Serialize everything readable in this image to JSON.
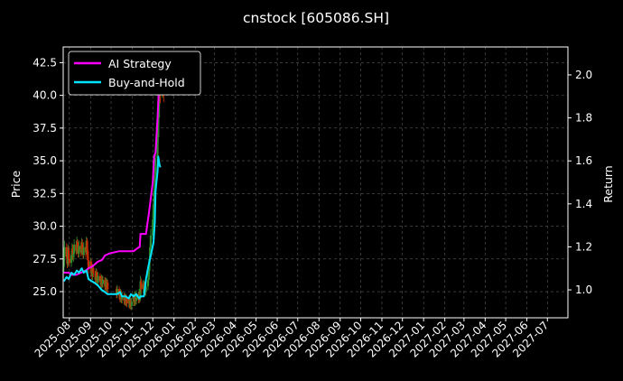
{
  "chart_data": {
    "type": "line",
    "title": "cnstock [605086.SH]",
    "ylabel_left": "Price",
    "ylabel_right": "Return",
    "ylim_left": [
      23.0,
      43.7
    ],
    "ylim_right": [
      0.87,
      2.13
    ],
    "grid": true,
    "legend_position": "top-left",
    "y_ticks_left": [
      "25.0",
      "27.5",
      "30.0",
      "32.5",
      "35.0",
      "37.5",
      "40.0",
      "42.5"
    ],
    "y_ticks_right": [
      "1.0",
      "1.2",
      "1.4",
      "1.6",
      "1.8",
      "2.0"
    ],
    "x_ticks": [
      "2025-08",
      "2025-09",
      "2025-10",
      "2025-11",
      "2025-12",
      "2026-01",
      "2026-02",
      "2026-03",
      "2026-04",
      "2026-05",
      "2026-06",
      "2026-07",
      "2026-08",
      "2026-09",
      "2026-10",
      "2026-11",
      "2026-12",
      "2027-01",
      "2027-02",
      "2027-03",
      "2027-04",
      "2027-05",
      "2027-06",
      "2027-07"
    ],
    "x_range": [
      "2025-07-23",
      "2027-07-31"
    ],
    "colors": {
      "up": "#2e8b2e",
      "down": "#cc2a00",
      "ai": "#ff00ff",
      "bh": "#00e5ff",
      "grid": "#5a5a5a"
    },
    "candles": [
      {
        "date": "2025-07-24",
        "o": 26.9,
        "c": 27.7,
        "h": 28.3,
        "l": 26.5
      },
      {
        "date": "2025-07-25",
        "o": 27.7,
        "c": 28.4,
        "h": 28.9,
        "l": 27.3
      },
      {
        "date": "2025-07-28",
        "o": 28.4,
        "c": 27.6,
        "h": 28.7,
        "l": 27.2
      },
      {
        "date": "2025-07-29",
        "o": 27.6,
        "c": 27.1,
        "h": 28.0,
        "l": 26.8
      },
      {
        "date": "2025-07-30",
        "o": 27.1,
        "c": 28.2,
        "h": 28.6,
        "l": 26.9
      },
      {
        "date": "2025-07-31",
        "o": 28.2,
        "c": 27.5,
        "h": 28.5,
        "l": 27.1
      },
      {
        "date": "2025-08-01",
        "o": 27.5,
        "c": 27.2,
        "h": 27.9,
        "l": 26.9
      },
      {
        "date": "2025-08-04",
        "o": 27.2,
        "c": 27.8,
        "h": 28.1,
        "l": 26.9
      },
      {
        "date": "2025-08-05",
        "o": 27.8,
        "c": 28.3,
        "h": 28.7,
        "l": 27.5
      },
      {
        "date": "2025-08-06",
        "o": 28.3,
        "c": 27.7,
        "h": 28.6,
        "l": 27.4
      },
      {
        "date": "2025-08-07",
        "o": 27.7,
        "c": 27.9,
        "h": 28.3,
        "l": 27.3
      },
      {
        "date": "2025-08-08",
        "o": 27.9,
        "c": 28.6,
        "h": 29.0,
        "l": 27.6
      },
      {
        "date": "2025-08-11",
        "o": 28.6,
        "c": 28.1,
        "h": 28.9,
        "l": 27.8
      },
      {
        "date": "2025-08-12",
        "o": 28.1,
        "c": 28.8,
        "h": 29.2,
        "l": 27.9
      },
      {
        "date": "2025-08-13",
        "o": 28.8,
        "c": 28.2,
        "h": 29.0,
        "l": 27.9
      },
      {
        "date": "2025-08-14",
        "o": 28.2,
        "c": 27.9,
        "h": 28.5,
        "l": 27.6
      },
      {
        "date": "2025-08-15",
        "o": 27.9,
        "c": 28.5,
        "h": 28.9,
        "l": 27.6
      },
      {
        "date": "2025-08-18",
        "o": 28.5,
        "c": 28.0,
        "h": 28.8,
        "l": 27.7
      },
      {
        "date": "2025-08-19",
        "o": 28.0,
        "c": 28.7,
        "h": 29.1,
        "l": 27.8
      },
      {
        "date": "2025-08-20",
        "o": 28.7,
        "c": 28.2,
        "h": 29.0,
        "l": 27.9
      },
      {
        "date": "2025-08-21",
        "o": 28.2,
        "c": 27.8,
        "h": 28.5,
        "l": 27.5
      },
      {
        "date": "2025-08-22",
        "o": 27.8,
        "c": 28.4,
        "h": 28.8,
        "l": 27.5
      },
      {
        "date": "2025-08-25",
        "o": 28.4,
        "c": 28.0,
        "h": 28.7,
        "l": 27.6
      },
      {
        "date": "2025-08-26",
        "o": 28.0,
        "c": 28.9,
        "h": 29.2,
        "l": 27.8
      },
      {
        "date": "2025-08-27",
        "o": 28.9,
        "c": 28.1,
        "h": 29.1,
        "l": 27.8
      },
      {
        "date": "2025-08-28",
        "o": 28.1,
        "c": 27.4,
        "h": 28.3,
        "l": 27.0
      },
      {
        "date": "2025-08-29",
        "o": 27.4,
        "c": 26.8,
        "h": 27.7,
        "l": 26.4
      },
      {
        "date": "2025-09-01",
        "o": 26.8,
        "c": 27.3,
        "h": 27.6,
        "l": 26.4
      },
      {
        "date": "2025-09-02",
        "o": 27.3,
        "c": 26.6,
        "h": 27.5,
        "l": 26.2
      },
      {
        "date": "2025-09-03",
        "o": 26.6,
        "c": 26.2,
        "h": 26.9,
        "l": 25.9
      },
      {
        "date": "2025-09-04",
        "o": 26.2,
        "c": 26.8,
        "h": 27.1,
        "l": 25.9
      },
      {
        "date": "2025-09-05",
        "o": 26.8,
        "c": 26.4,
        "h": 27.0,
        "l": 26.1
      },
      {
        "date": "2025-09-08",
        "o": 26.4,
        "c": 25.9,
        "h": 26.6,
        "l": 25.6
      },
      {
        "date": "2025-09-09",
        "o": 25.9,
        "c": 26.5,
        "h": 26.8,
        "l": 25.6
      },
      {
        "date": "2025-09-10",
        "o": 26.5,
        "c": 26.1,
        "h": 26.7,
        "l": 25.8
      },
      {
        "date": "2025-09-11",
        "o": 26.1,
        "c": 25.7,
        "h": 26.3,
        "l": 25.4
      },
      {
        "date": "2025-09-12",
        "o": 25.7,
        "c": 26.2,
        "h": 26.5,
        "l": 25.4
      },
      {
        "date": "2025-09-15",
        "o": 26.2,
        "c": 25.8,
        "h": 26.4,
        "l": 25.5
      },
      {
        "date": "2025-09-16",
        "o": 25.8,
        "c": 25.5,
        "h": 26.0,
        "l": 25.2
      },
      {
        "date": "2025-09-17",
        "o": 25.5,
        "c": 26.0,
        "h": 26.3,
        "l": 25.2
      },
      {
        "date": "2025-09-18",
        "o": 26.0,
        "c": 25.6,
        "h": 26.2,
        "l": 25.3
      },
      {
        "date": "2025-09-19",
        "o": 25.6,
        "c": 25.9,
        "h": 26.2,
        "l": 25.3
      },
      {
        "date": "2025-09-22",
        "o": 25.9,
        "c": 25.4,
        "h": 26.1,
        "l": 25.1
      },
      {
        "date": "2025-09-23",
        "o": 25.4,
        "c": 25.8,
        "h": 26.1,
        "l": 25.1
      },
      {
        "date": "2025-09-24",
        "o": 25.8,
        "c": 25.3,
        "h": 26.0,
        "l": 25.0
      },
      {
        "date": "2025-09-25",
        "o": 25.3,
        "c": 25.7,
        "h": 26.0,
        "l": 25.0
      },
      {
        "date": "2025-09-26",
        "o": 25.7,
        "c": 25.2,
        "h": 25.9,
        "l": 24.9
      },
      {
        "date": "2025-10-09",
        "o": 25.2,
        "c": 24.8,
        "h": 25.4,
        "l": 24.5
      },
      {
        "date": "2025-10-10",
        "o": 24.8,
        "c": 25.2,
        "h": 25.5,
        "l": 24.5
      },
      {
        "date": "2025-10-13",
        "o": 25.2,
        "c": 24.7,
        "h": 25.4,
        "l": 24.4
      },
      {
        "date": "2025-10-14",
        "o": 24.7,
        "c": 24.5,
        "h": 25.0,
        "l": 24.2
      },
      {
        "date": "2025-10-15",
        "o": 24.5,
        "c": 24.9,
        "h": 25.2,
        "l": 24.2
      },
      {
        "date": "2025-10-16",
        "o": 24.9,
        "c": 24.4,
        "h": 25.1,
        "l": 24.1
      },
      {
        "date": "2025-10-17",
        "o": 24.4,
        "c": 24.7,
        "h": 25.0,
        "l": 24.1
      },
      {
        "date": "2025-10-20",
        "o": 24.7,
        "c": 24.3,
        "h": 24.9,
        "l": 24.0
      },
      {
        "date": "2025-10-21",
        "o": 24.3,
        "c": 24.6,
        "h": 24.9,
        "l": 24.0
      },
      {
        "date": "2025-10-22",
        "o": 24.6,
        "c": 24.2,
        "h": 24.8,
        "l": 23.9
      },
      {
        "date": "2025-10-23",
        "o": 24.2,
        "c": 24.5,
        "h": 24.8,
        "l": 23.9
      },
      {
        "date": "2025-10-24",
        "o": 24.5,
        "c": 24.1,
        "h": 24.7,
        "l": 23.8
      },
      {
        "date": "2025-10-27",
        "o": 24.1,
        "c": 24.4,
        "h": 24.7,
        "l": 23.8
      },
      {
        "date": "2025-10-28",
        "o": 24.4,
        "c": 24.0,
        "h": 24.6,
        "l": 23.7
      },
      {
        "date": "2025-10-29",
        "o": 24.0,
        "c": 24.3,
        "h": 24.6,
        "l": 23.7
      },
      {
        "date": "2025-10-30",
        "o": 24.3,
        "c": 23.9,
        "h": 24.5,
        "l": 23.6
      },
      {
        "date": "2025-10-31",
        "o": 23.9,
        "c": 24.2,
        "h": 24.5,
        "l": 23.6
      },
      {
        "date": "2025-11-03",
        "o": 24.2,
        "c": 24.6,
        "h": 24.9,
        "l": 23.9
      },
      {
        "date": "2025-11-04",
        "o": 24.6,
        "c": 24.2,
        "h": 24.8,
        "l": 23.9
      },
      {
        "date": "2025-11-05",
        "o": 24.2,
        "c": 24.7,
        "h": 25.0,
        "l": 23.9
      },
      {
        "date": "2025-11-06",
        "o": 24.7,
        "c": 24.3,
        "h": 24.9,
        "l": 24.0
      },
      {
        "date": "2025-11-07",
        "o": 24.3,
        "c": 24.8,
        "h": 25.1,
        "l": 24.0
      },
      {
        "date": "2025-11-10",
        "o": 24.8,
        "c": 24.4,
        "h": 25.0,
        "l": 24.1
      },
      {
        "date": "2025-11-11",
        "o": 24.4,
        "c": 24.9,
        "h": 25.2,
        "l": 24.1
      },
      {
        "date": "2025-11-12",
        "o": 24.9,
        "c": 24.5,
        "h": 25.1,
        "l": 24.2
      },
      {
        "date": "2025-11-13",
        "o": 24.5,
        "c": 25.8,
        "h": 26.2,
        "l": 24.3
      },
      {
        "date": "2025-11-14",
        "o": 25.8,
        "c": 25.2,
        "h": 26.0,
        "l": 24.9
      },
      {
        "date": "2025-11-17",
        "o": 25.2,
        "c": 25.6,
        "h": 25.9,
        "l": 24.9
      },
      {
        "date": "2025-11-18",
        "o": 25.6,
        "c": 25.1,
        "h": 25.8,
        "l": 24.8
      },
      {
        "date": "2025-11-19",
        "o": 25.1,
        "c": 25.5,
        "h": 25.8,
        "l": 24.8
      },
      {
        "date": "2025-11-20",
        "o": 25.5,
        "c": 25.0,
        "h": 25.7,
        "l": 24.7
      },
      {
        "date": "2025-11-21",
        "o": 25.0,
        "c": 25.4,
        "h": 25.7,
        "l": 24.7
      },
      {
        "date": "2025-11-24",
        "o": 25.4,
        "c": 25.9,
        "h": 26.2,
        "l": 25.1
      },
      {
        "date": "2025-11-25",
        "o": 25.9,
        "c": 26.6,
        "h": 27.0,
        "l": 25.6
      },
      {
        "date": "2025-11-26",
        "o": 26.6,
        "c": 27.5,
        "h": 27.9,
        "l": 26.3
      },
      {
        "date": "2025-11-27",
        "o": 27.5,
        "c": 28.4,
        "h": 28.8,
        "l": 27.2
      },
      {
        "date": "2025-11-28",
        "o": 28.4,
        "c": 29.3,
        "h": 29.8,
        "l": 28.0
      },
      {
        "date": "2025-12-01",
        "o": 29.3,
        "c": 30.5,
        "h": 31.0,
        "l": 29.0
      },
      {
        "date": "2025-12-02",
        "o": 30.5,
        "c": 31.6,
        "h": 32.1,
        "l": 30.2
      },
      {
        "date": "2025-12-03",
        "o": 31.6,
        "c": 32.7,
        "h": 33.2,
        "l": 31.2
      },
      {
        "date": "2025-12-04",
        "o": 32.7,
        "c": 33.9,
        "h": 34.5,
        "l": 32.3
      },
      {
        "date": "2025-12-05",
        "o": 33.9,
        "c": 35.2,
        "h": 35.9,
        "l": 33.5
      },
      {
        "date": "2025-12-08",
        "o": 35.2,
        "c": 36.8,
        "h": 37.5,
        "l": 34.8
      },
      {
        "date": "2025-12-09",
        "o": 36.8,
        "c": 38.3,
        "h": 39.1,
        "l": 36.4
      },
      {
        "date": "2025-12-10",
        "o": 38.3,
        "c": 39.8,
        "h": 40.7,
        "l": 37.8
      },
      {
        "date": "2025-12-11",
        "o": 39.8,
        "c": 41.2,
        "h": 42.3,
        "l": 39.2
      },
      {
        "date": "2025-12-12",
        "o": 41.2,
        "c": 40.3,
        "h": 41.9,
        "l": 39.4
      },
      {
        "date": "2025-12-15",
        "o": 40.3,
        "c": 41.6,
        "h": 42.1,
        "l": 39.8
      },
      {
        "date": "2025-12-16",
        "o": 41.6,
        "c": 40.6,
        "h": 41.9,
        "l": 39.9
      },
      {
        "date": "2025-12-17",
        "o": 40.6,
        "c": 40.0,
        "h": 41.0,
        "l": 39.5
      }
    ],
    "series": [
      {
        "name": "AI Strategy",
        "x": [
          "2025-07-24",
          "2025-07-31",
          "2025-08-04",
          "2025-08-11",
          "2025-08-18",
          "2025-08-25",
          "2025-08-29",
          "2025-09-04",
          "2025-09-11",
          "2025-09-18",
          "2025-09-22",
          "2025-09-29",
          "2025-10-13",
          "2025-10-20",
          "2025-10-27",
          "2025-11-03",
          "2025-11-07",
          "2025-11-12",
          "2025-11-13",
          "2025-11-17",
          "2025-11-21",
          "2025-11-25",
          "2025-11-27",
          "2025-12-01",
          "2025-12-03",
          "2025-12-05",
          "2025-12-08",
          "2025-12-10",
          "2025-12-11",
          "2025-12-12"
        ],
        "values": [
          1.08,
          1.08,
          1.07,
          1.07,
          1.08,
          1.09,
          1.1,
          1.11,
          1.13,
          1.14,
          1.16,
          1.17,
          1.18,
          1.18,
          1.18,
          1.18,
          1.19,
          1.2,
          1.26,
          1.26,
          1.26,
          1.35,
          1.4,
          1.5,
          1.62,
          1.64,
          1.8,
          1.94,
          2.05,
          2.08
        ]
      },
      {
        "name": "Buy-and-Hold",
        "x": [
          "2025-07-24",
          "2025-07-28",
          "2025-07-31",
          "2025-08-04",
          "2025-08-08",
          "2025-08-12",
          "2025-08-15",
          "2025-08-19",
          "2025-08-22",
          "2025-08-26",
          "2025-08-29",
          "2025-09-03",
          "2025-09-08",
          "2025-09-12",
          "2025-09-17",
          "2025-09-22",
          "2025-09-26",
          "2025-10-10",
          "2025-10-14",
          "2025-10-17",
          "2025-10-22",
          "2025-10-27",
          "2025-10-30",
          "2025-11-03",
          "2025-11-07",
          "2025-11-11",
          "2025-11-13",
          "2025-11-18",
          "2025-11-21",
          "2025-11-24",
          "2025-11-26",
          "2025-11-28",
          "2025-12-02",
          "2025-12-04",
          "2025-12-05",
          "2025-12-08",
          "2025-12-09",
          "2025-12-10",
          "2025-12-11",
          "2025-12-12"
        ],
        "values": [
          1.04,
          1.06,
          1.05,
          1.08,
          1.07,
          1.09,
          1.08,
          1.1,
          1.08,
          1.09,
          1.05,
          1.04,
          1.03,
          1.02,
          1.0,
          0.99,
          0.98,
          0.98,
          0.99,
          0.97,
          0.97,
          0.96,
          0.98,
          0.97,
          0.98,
          0.96,
          0.97,
          0.97,
          1.05,
          1.1,
          1.13,
          1.16,
          1.22,
          1.32,
          1.46,
          1.55,
          1.62,
          1.6,
          1.58,
          1.57
        ]
      }
    ]
  }
}
